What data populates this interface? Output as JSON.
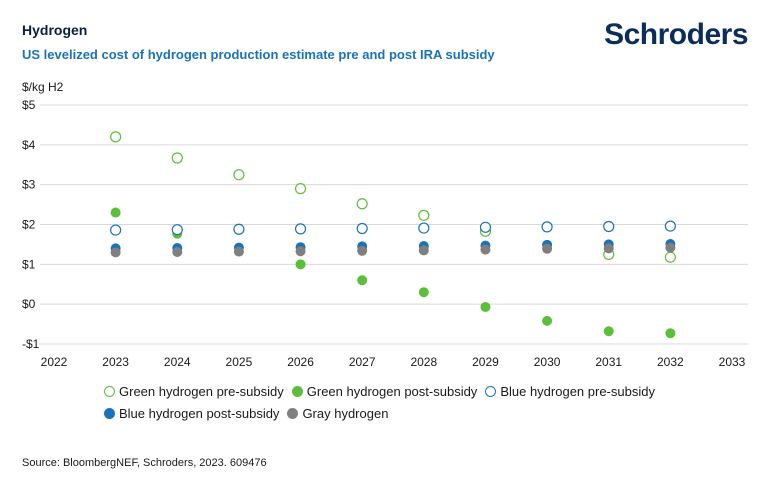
{
  "header": {
    "title": "Hydrogen",
    "subtitle": "US levelized cost of hydrogen production estimate pre and post IRA subsidy",
    "logo_text": "Schroders"
  },
  "footer": {
    "source": "Source: BloombergNEF, Schroders, 2023. 609476"
  },
  "chart_data": {
    "type": "scatter",
    "ylabel": "$/kg H2",
    "ylim": [
      -1,
      5
    ],
    "xlim": [
      2022,
      2033
    ],
    "xticks": [
      2022,
      2023,
      2024,
      2025,
      2026,
      2027,
      2028,
      2029,
      2030,
      2031,
      2032,
      2033
    ],
    "yticks": [
      5,
      4,
      3,
      2,
      1,
      0,
      -1
    ],
    "ytick_labels": [
      "$5",
      "$4",
      "$3",
      "$2",
      "$1",
      "$0",
      "-$1"
    ],
    "grid": true,
    "legend_position": "bottom",
    "x": [
      2023,
      2024,
      2025,
      2026,
      2027,
      2028,
      2029,
      2030,
      2031,
      2032
    ],
    "series": [
      {
        "name": "Green hydrogen pre-subsidy",
        "marker": "hollow",
        "color": "#5bbf3a",
        "values": [
          4.2,
          3.67,
          3.25,
          2.9,
          2.52,
          2.23,
          1.83,
          null,
          1.25,
          1.18
        ]
      },
      {
        "name": "Green hydrogen post-subsidy",
        "marker": "filled",
        "color": "#5bbf3a",
        "values": [
          2.3,
          1.77,
          null,
          1.0,
          0.6,
          0.3,
          -0.07,
          -0.42,
          -0.68,
          -0.73
        ]
      },
      {
        "name": "Blue hydrogen pre-subsidy",
        "marker": "hollow",
        "color": "#1a73b8",
        "values": [
          1.86,
          1.87,
          1.88,
          1.89,
          1.9,
          1.91,
          1.93,
          1.94,
          1.95,
          1.96
        ]
      },
      {
        "name": "Blue hydrogen post-subsidy",
        "marker": "filled",
        "color": "#1a73b8",
        "values": [
          1.4,
          1.41,
          1.42,
          1.43,
          1.45,
          1.46,
          1.47,
          1.49,
          1.5,
          1.51
        ]
      },
      {
        "name": "Gray hydrogen",
        "marker": "filled",
        "color": "#7f7f7f",
        "values": [
          1.3,
          1.31,
          1.32,
          1.33,
          1.34,
          1.35,
          1.37,
          1.39,
          1.4,
          1.42
        ]
      }
    ]
  }
}
